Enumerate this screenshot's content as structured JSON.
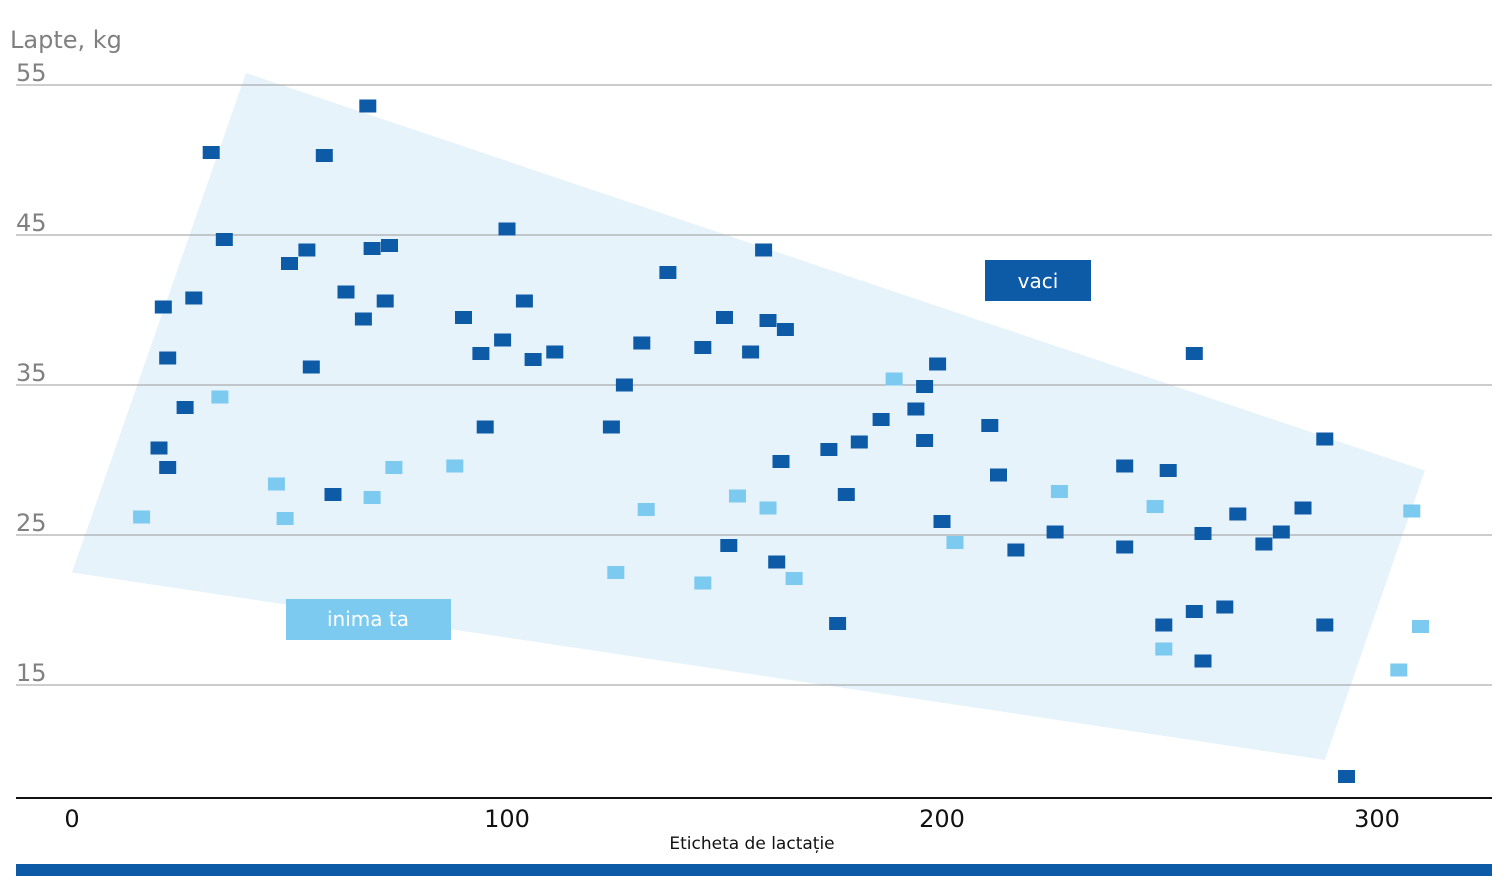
{
  "chart_data": {
    "type": "scatter",
    "title": "",
    "ylabel": "Lapte, kg",
    "xlabel": "Eticheta de lactație",
    "xlim": [
      0,
      320
    ],
    "ylim": [
      9,
      55
    ],
    "x_ticks": [
      0,
      100,
      200,
      300
    ],
    "y_ticks": [
      15,
      25,
      35,
      45,
      55
    ],
    "grid": "horizontal",
    "colors": {
      "vaci": "#0d5aa7",
      "inima_ta": "#7ccaef",
      "band": "#e6f3fb",
      "grid": "#9a9a9a",
      "axis": "#111111",
      "bottom_bar": "#0d5aa7"
    },
    "band_polygon": [
      [
        40,
        55.8
      ],
      [
        311,
        29.3
      ],
      [
        288,
        10.0
      ],
      [
        0,
        22.5
      ]
    ],
    "series": [
      {
        "name": "vaci",
        "legend_label": "vaci",
        "points": [
          [
            20,
            30.8
          ],
          [
            21,
            40.2
          ],
          [
            22,
            36.8
          ],
          [
            22,
            29.5
          ],
          [
            26,
            33.5
          ],
          [
            28,
            40.8
          ],
          [
            32,
            50.5
          ],
          [
            35,
            44.7
          ],
          [
            50,
            43.1
          ],
          [
            54,
            44.0
          ],
          [
            55,
            36.2
          ],
          [
            58,
            50.3
          ],
          [
            60,
            27.7
          ],
          [
            63,
            41.2
          ],
          [
            67,
            39.4
          ],
          [
            68,
            53.6
          ],
          [
            69,
            44.1
          ],
          [
            72,
            40.6
          ],
          [
            73,
            44.3
          ],
          [
            90,
            39.5
          ],
          [
            94,
            37.1
          ],
          [
            95,
            32.2
          ],
          [
            99,
            38.0
          ],
          [
            100,
            45.4
          ],
          [
            104,
            40.6
          ],
          [
            106,
            36.7
          ],
          [
            111,
            37.2
          ],
          [
            124,
            32.2
          ],
          [
            127,
            35.0
          ],
          [
            131,
            37.8
          ],
          [
            137,
            42.5
          ],
          [
            145,
            37.5
          ],
          [
            150,
            39.5
          ],
          [
            151,
            24.3
          ],
          [
            156,
            37.2
          ],
          [
            159,
            44.0
          ],
          [
            160,
            39.3
          ],
          [
            162,
            23.2
          ],
          [
            163,
            29.9
          ],
          [
            164,
            38.7
          ],
          [
            174,
            30.7
          ],
          [
            176,
            19.1
          ],
          [
            178,
            27.7
          ],
          [
            181,
            31.2
          ],
          [
            186,
            32.7
          ],
          [
            194,
            33.4
          ],
          [
            196,
            31.3
          ],
          [
            196,
            34.9
          ],
          [
            199,
            36.4
          ],
          [
            200,
            25.9
          ],
          [
            211,
            32.3
          ],
          [
            213,
            29.0
          ],
          [
            217,
            24.0
          ],
          [
            226,
            25.2
          ],
          [
            242,
            29.6
          ],
          [
            242,
            24.2
          ],
          [
            251,
            19.0
          ],
          [
            252,
            29.3
          ],
          [
            258,
            19.9
          ],
          [
            258,
            37.1
          ],
          [
            260,
            16.6
          ],
          [
            260,
            25.1
          ],
          [
            265,
            20.2
          ],
          [
            268,
            26.4
          ],
          [
            274,
            24.4
          ],
          [
            278,
            25.2
          ],
          [
            283,
            26.8
          ],
          [
            288,
            31.4
          ],
          [
            288,
            19.0
          ],
          [
            293,
            8.9
          ]
        ]
      },
      {
        "name": "inima ta",
        "legend_label": "inima ta",
        "points": [
          [
            16,
            26.2
          ],
          [
            34,
            34.2
          ],
          [
            47,
            28.4
          ],
          [
            49,
            26.1
          ],
          [
            69,
            27.5
          ],
          [
            74,
            29.5
          ],
          [
            88,
            29.6
          ],
          [
            125,
            22.5
          ],
          [
            132,
            26.7
          ],
          [
            145,
            21.8
          ],
          [
            153,
            27.6
          ],
          [
            160,
            26.8
          ],
          [
            166,
            22.1
          ],
          [
            189,
            35.4
          ],
          [
            203,
            24.5
          ],
          [
            227,
            27.9
          ],
          [
            249,
            26.9
          ],
          [
            251,
            17.4
          ],
          [
            305,
            16.0
          ],
          [
            308,
            26.6
          ],
          [
            310,
            18.9
          ]
        ]
      }
    ],
    "legend": [
      {
        "label": "vaci",
        "placement": "upper-right inside band"
      },
      {
        "label": "inima ta",
        "placement": "lower-left inside band"
      }
    ]
  }
}
